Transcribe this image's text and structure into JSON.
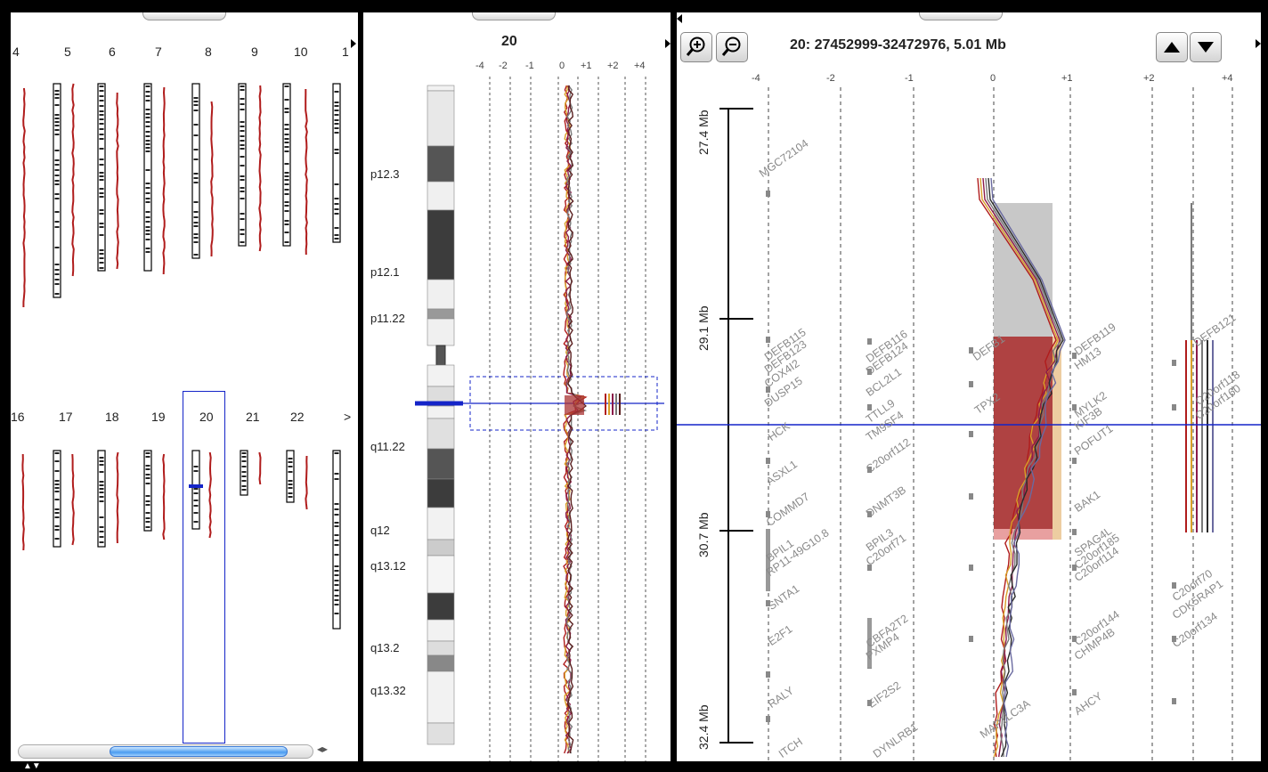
{
  "genome_panel": {
    "row1_chromosomes": [
      "4",
      "5",
      "6",
      "7",
      "8",
      "9",
      "10",
      "1"
    ],
    "row2_chromosomes": [
      "16",
      "17",
      "18",
      "19",
      "20",
      "21",
      "22",
      ">"
    ],
    "selected_chromosome": "20",
    "scroll_arrows": "◂▸"
  },
  "chromosome_panel": {
    "title": "20",
    "ticks": [
      "-4",
      "-2",
      "-1",
      "0",
      "+1",
      "+2",
      "+4"
    ],
    "band_labels": [
      "p12.3",
      "p12.1",
      "p11.22",
      "q11.22",
      "q12",
      "q13.12",
      "q13.2",
      "q13.32"
    ]
  },
  "detail_panel": {
    "region_title": "20: 27452999-32472976, 5.01 Mb",
    "zoom_in_icon": "zoom-in-icon",
    "zoom_out_icon": "zoom-out-icon",
    "up_icon": "up-arrow-icon",
    "down_icon": "down-arrow-icon",
    "ticks": [
      "-4",
      "-2",
      "-1",
      "0",
      "+1",
      "+2",
      "+4"
    ],
    "mb_labels": [
      "27.4 Mb",
      "29.1 Mb",
      "30.7 Mb",
      "32.4 Mb"
    ],
    "genes": [
      "MGC72104",
      "DEFB115",
      "DEFB123",
      "COX4I2",
      "DUSP15",
      "HCK",
      "ASXL1",
      "COMMD7",
      "BPIL1",
      "RP11-49G10.8",
      "SNTA1",
      "E2F1",
      "PXMP4",
      "DEFB116",
      "DEFB124",
      "BCL2L1",
      "TTLL9",
      "TM9SF4",
      "C20orf112",
      "DNMT3B",
      "BPIL3",
      "C20orf71",
      "CBFA2T2",
      "EIF2S2",
      "RALY",
      "ITCH",
      "DYNLRB1",
      "DEFB119",
      "HM13",
      "MYLK2",
      "KIF3B",
      "POFUT1",
      "BAK1",
      "SPAG4L",
      "C20orf185",
      "C20orf114",
      "C20orf144",
      "CHMP4B",
      "AHCY",
      "C20orf70",
      "CDK5RAP1",
      "C20orf134",
      "DEFB121",
      "MAP1LC3A",
      "DEFB1",
      "TPX2",
      "C20orf118",
      "C20orf160"
    ]
  },
  "colors": {
    "red": "#b01c1c",
    "blue": "#1424c8",
    "gold": "#d9a028",
    "gray": "#7a7a7a"
  }
}
